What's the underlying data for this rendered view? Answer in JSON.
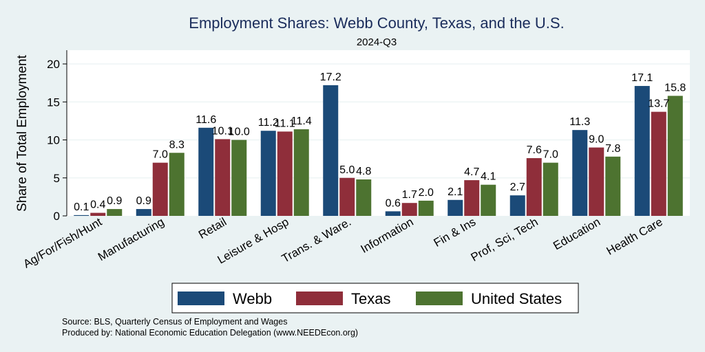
{
  "chart_data": {
    "type": "bar",
    "title": "Employment Shares: Webb County, Texas, and the U.S.",
    "subtitle": "2024-Q3",
    "xlabel": "",
    "ylabel": "Share of Total Employment",
    "ylim": [
      0,
      21.5
    ],
    "yticks": [
      0,
      5,
      10,
      15,
      20
    ],
    "grid": true,
    "legend_position": "bottom",
    "categories": [
      "Ag/For/Fish/Hunt",
      "Manufacturing",
      "Retail",
      "Leisure & Hosp",
      "Trans. & Ware.",
      "Information",
      "Fin & Ins",
      "Prof, Sci, Tech",
      "Education",
      "Health Care"
    ],
    "series": [
      {
        "name": "Webb",
        "color": "#1b4a78",
        "values": [
          0.1,
          0.9,
          11.6,
          11.2,
          17.2,
          0.6,
          2.1,
          2.7,
          11.3,
          17.1
        ],
        "labels": [
          "0.1",
          "0.9",
          "11.6",
          "11.2",
          "17.2",
          "0.6",
          "2.1",
          "2.7",
          "11.3",
          "17.1"
        ]
      },
      {
        "name": "Texas",
        "color": "#8f2e3a",
        "values": [
          0.4,
          7.0,
          10.1,
          11.1,
          5.0,
          1.7,
          4.7,
          7.6,
          9.0,
          13.7
        ],
        "labels": [
          "0.4",
          "7.0",
          "10.1",
          "11.1",
          "5.0",
          "1.7",
          "4.7",
          "7.6",
          "9.0",
          "13.7"
        ]
      },
      {
        "name": "United States",
        "color": "#4d7330",
        "values": [
          0.9,
          8.3,
          10.0,
          11.4,
          4.8,
          2.0,
          4.1,
          7.0,
          7.8,
          15.8
        ],
        "labels": [
          "0.9",
          "8.3",
          "10.0",
          "11.4",
          "4.8",
          "2.0",
          "4.1",
          "7.0",
          "7.8",
          "15.8"
        ]
      }
    ]
  },
  "notes": {
    "source": "Source: BLS, Quarterly Census of Employment and Wages",
    "produced_by": "Produced by: National Economic Education Delegation (www.NEEDEcon.org)"
  }
}
